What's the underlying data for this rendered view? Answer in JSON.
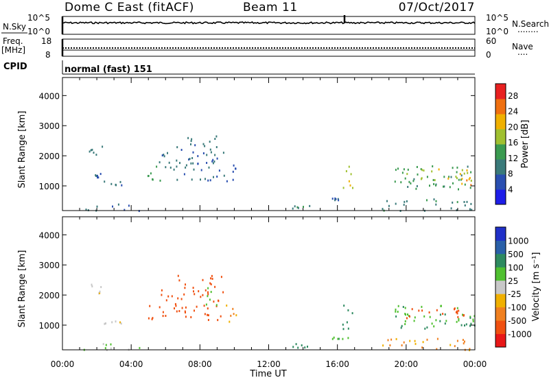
{
  "header": {
    "radar": "Dome C East (fitACF)",
    "beam": "Beam 11",
    "date": "07/Oct/2017"
  },
  "strips": {
    "nsky": {
      "label": "N.Sky",
      "left_ticks": [
        "10^5",
        "10^0"
      ],
      "right_ticks": [
        "10^5",
        "10^0"
      ],
      "right_label": "N.Search",
      "right_dots": "........"
    },
    "freq": {
      "label_line1": "Freq.",
      "label_line2": "[MHz]",
      "left_ticks": [
        "18",
        "8"
      ],
      "right_ticks": [
        "60",
        "0"
      ],
      "right_label": "Nave",
      "right_dots": "...."
    },
    "cpid": {
      "label": "CPID",
      "value": "normal (fast) 151"
    }
  },
  "colors": {
    "power_scale": [
      "#1e1ee8",
      "#2a4fb0",
      "#3a7a7a",
      "#3a9a50",
      "#a0c030",
      "#f0b000",
      "#f07010",
      "#e82020"
    ],
    "velocity_scale": [
      "#e81818",
      "#f05010",
      "#f08020",
      "#f0b000",
      "#c8c8c8",
      "#50c030",
      "#2e8a60",
      "#2a60a8",
      "#2030c8"
    ]
  },
  "chart_data": [
    {
      "type": "heatmap",
      "panel": "power",
      "ylabel": "Slant Range [km]",
      "y_ticks": [
        "1000",
        "2000",
        "3000",
        "4000"
      ],
      "ylim": [
        180,
        4600
      ],
      "x_ticks": [
        "00:00",
        "04:00",
        "08:00",
        "12:00",
        "16:00",
        "20:00",
        "00:00"
      ],
      "xlim_hours": [
        0,
        24
      ],
      "colorbar": {
        "label": "Power [dB]",
        "ticks": [
          "4",
          "8",
          "12",
          "16",
          "20",
          "24",
          "28"
        ],
        "range": [
          0,
          31
        ]
      },
      "echo_regions": [
        {
          "t": [
            1.5,
            2.3
          ],
          "r": [
            2050,
            2400
          ],
          "v": 9
        },
        {
          "t": [
            1.8,
            2.2
          ],
          "r": [
            1300,
            1450
          ],
          "v": 9
        },
        {
          "t": [
            2.4,
            3.5
          ],
          "r": [
            1050,
            1200
          ],
          "v": 8
        },
        {
          "t": [
            4.8,
            6.0
          ],
          "r": [
            1200,
            1700
          ],
          "v": 14
        },
        {
          "t": [
            5.5,
            6.6
          ],
          "r": [
            1500,
            2200
          ],
          "v": 8
        },
        {
          "t": [
            6.6,
            9.4
          ],
          "r": [
            1200,
            2700
          ],
          "v": 9
        },
        {
          "t": [
            8.3,
            9.0
          ],
          "r": [
            1700,
            2300
          ],
          "v": 7
        },
        {
          "t": [
            9.5,
            10.1
          ],
          "r": [
            1100,
            1800
          ],
          "v": 6
        },
        {
          "t": [
            1.0,
            4.5
          ],
          "r": [
            200,
            420
          ],
          "v": 7
        },
        {
          "t": [
            13.2,
            14.6
          ],
          "r": [
            250,
            420
          ],
          "v": 12
        },
        {
          "t": [
            15.6,
            16.6
          ],
          "r": [
            550,
            620
          ],
          "v": 7
        },
        {
          "t": [
            16.2,
            16.9
          ],
          "r": [
            800,
            1700
          ],
          "v": 18
        },
        {
          "t": [
            19.2,
            24.0
          ],
          "r": [
            900,
            1700
          ],
          "v": 13
        },
        {
          "t": [
            20.0,
            23.8
          ],
          "r": [
            1200,
            1600
          ],
          "v": 18
        },
        {
          "t": [
            23.2,
            24.0
          ],
          "r": [
            1000,
            1300
          ],
          "v": 22
        },
        {
          "t": [
            18.5,
            24.0
          ],
          "r": [
            200,
            600
          ],
          "v": 10
        }
      ]
    },
    {
      "type": "heatmap",
      "panel": "velocity",
      "ylabel": "Slant Range [km]",
      "y_ticks": [
        "1000",
        "2000",
        "3000",
        "4000"
      ],
      "ylim": [
        180,
        4600
      ],
      "x_ticks": [
        "00:00",
        "04:00",
        "08:00",
        "12:00",
        "16:00",
        "20:00",
        "00:00"
      ],
      "xlim_hours": [
        0,
        24
      ],
      "xlabel": "Time UT",
      "colorbar": {
        "label": "Velocity [m s⁻¹]",
        "ticks": [
          "1000",
          "500",
          "100",
          "25",
          "-25",
          "-100",
          "-500",
          "-1000"
        ]
      },
      "echo_regions": [
        {
          "t": [
            1.5,
            2.3
          ],
          "r": [
            2050,
            2400
          ],
          "v": -20
        },
        {
          "t": [
            2.4,
            3.5
          ],
          "r": [
            1050,
            1200
          ],
          "v": 0
        },
        {
          "t": [
            4.8,
            6.0
          ],
          "r": [
            1200,
            1700
          ],
          "v": -400
        },
        {
          "t": [
            5.5,
            6.6
          ],
          "r": [
            1500,
            2200
          ],
          "v": -150
        },
        {
          "t": [
            6.6,
            9.4
          ],
          "r": [
            1200,
            2700
          ],
          "v": -200
        },
        {
          "t": [
            8.3,
            9.0
          ],
          "r": [
            1700,
            2300
          ],
          "v": 60
        },
        {
          "t": [
            9.5,
            10.1
          ],
          "r": [
            1100,
            1800
          ],
          "v": -60
        },
        {
          "t": [
            1.0,
            4.5
          ],
          "r": [
            200,
            420
          ],
          "v": 40
        },
        {
          "t": [
            13.2,
            14.6
          ],
          "r": [
            250,
            420
          ],
          "v": 300
        },
        {
          "t": [
            15.6,
            16.6
          ],
          "r": [
            550,
            620
          ],
          "v": 80
        },
        {
          "t": [
            16.2,
            16.9
          ],
          "r": [
            800,
            1700
          ],
          "v": 150
        },
        {
          "t": [
            19.2,
            24.0
          ],
          "r": [
            900,
            1700
          ],
          "v": 90
        },
        {
          "t": [
            20.0,
            23.8
          ],
          "r": [
            1200,
            1600
          ],
          "v": -150
        },
        {
          "t": [
            23.2,
            24.0
          ],
          "r": [
            1000,
            1300
          ],
          "v": 200
        },
        {
          "t": [
            18.5,
            24.0
          ],
          "r": [
            200,
            600
          ],
          "v": -60
        }
      ]
    }
  ]
}
